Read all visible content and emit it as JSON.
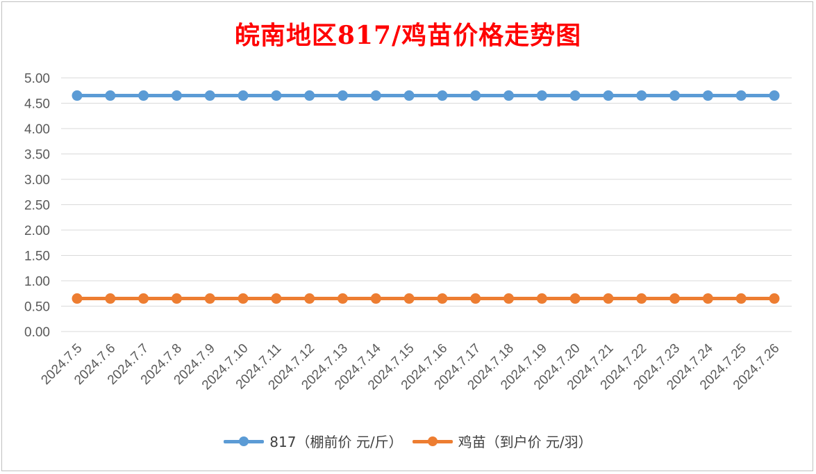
{
  "chart_data": {
    "type": "line",
    "title": "皖南地区817/鸡苗价格走势图",
    "xlabel": "",
    "ylabel": "",
    "categories": [
      "2024.7.5",
      "2024.7.6",
      "2024.7.7",
      "2024.7.8",
      "2024.7.9",
      "2024.7.10",
      "2024.7.11",
      "2024.7.12",
      "2024.7.13",
      "2024.7.14",
      "2024.7.15",
      "2024.7.16",
      "2024.7.17",
      "2024.7.18",
      "2024.7.19",
      "2024.7.20",
      "2024.7.21",
      "2024.7.22",
      "2024.7.23",
      "2024.7.24",
      "2024.7.25",
      "2024.7.26"
    ],
    "series": [
      {
        "name": "817（棚前价 元/斤）",
        "color": "#5b9bd5",
        "values": [
          4.65,
          4.65,
          4.65,
          4.65,
          4.65,
          4.65,
          4.65,
          4.65,
          4.65,
          4.65,
          4.65,
          4.65,
          4.65,
          4.65,
          4.65,
          4.65,
          4.65,
          4.65,
          4.65,
          4.65,
          4.65,
          4.65
        ]
      },
      {
        "name": "鸡苗（到户价 元/羽）",
        "color": "#ed7d31",
        "values": [
          0.65,
          0.65,
          0.65,
          0.65,
          0.65,
          0.65,
          0.65,
          0.65,
          0.65,
          0.65,
          0.65,
          0.65,
          0.65,
          0.65,
          0.65,
          0.65,
          0.65,
          0.65,
          0.65,
          0.65,
          0.65,
          0.65
        ]
      }
    ],
    "ylim": [
      0,
      5
    ],
    "y_ticks": [
      "0.00",
      "0.50",
      "1.00",
      "1.50",
      "2.00",
      "2.50",
      "3.00",
      "3.50",
      "4.00",
      "4.50",
      "5.00"
    ],
    "grid": true,
    "legend_position": "bottom"
  }
}
